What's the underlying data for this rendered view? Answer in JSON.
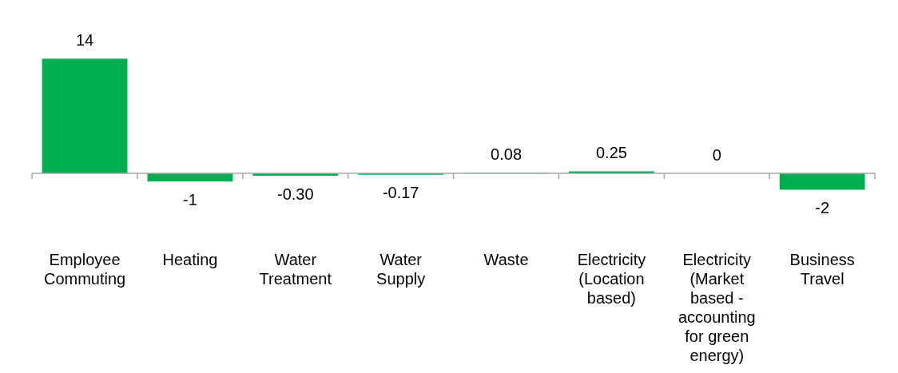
{
  "chart_data": {
    "type": "bar",
    "categories": [
      "Employee Commuting",
      "Heating",
      "Water Treatment",
      "Water Supply",
      "Waste",
      "Electricity (Location based)",
      "Electricity (Market based - accounting for green energy)",
      "Business Travel"
    ],
    "values": [
      14,
      -1,
      -0.3,
      -0.17,
      0.08,
      0.25,
      0,
      -2
    ],
    "value_labels": [
      "14",
      "-1",
      "-0.30",
      "-0.17",
      "0.08",
      "0.25",
      "0",
      "-2"
    ],
    "color": "#00b050",
    "grid": false,
    "legend": false
  }
}
